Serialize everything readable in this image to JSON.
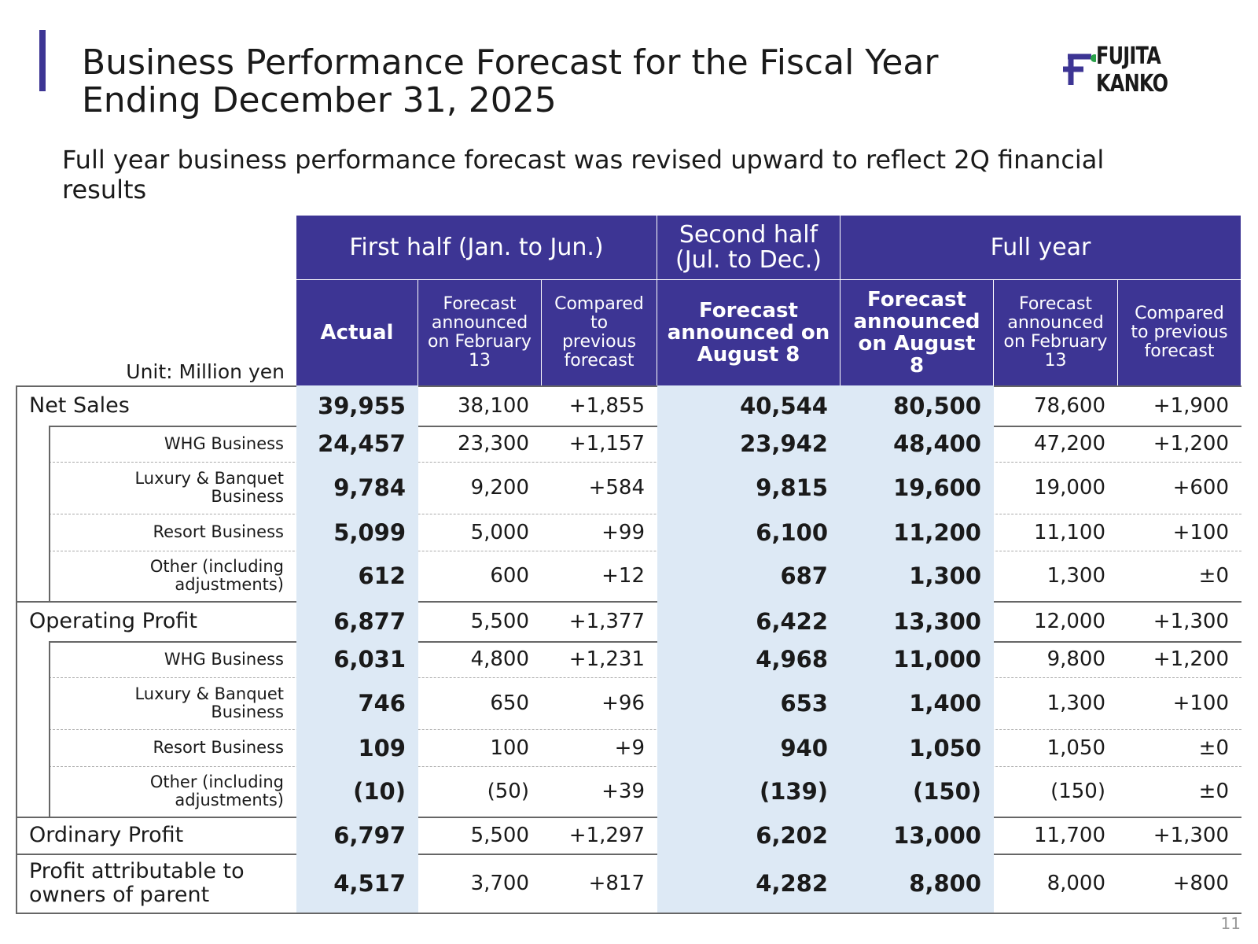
{
  "header": {
    "title": "Business Performance Forecast for the Fiscal Year Ending December 31, 2025",
    "logo": "FUJITA KANKO"
  },
  "subtitle": "Full year business performance forecast was revised upward to reflect 2Q financial results",
  "table": {
    "unit": "Unit: Million yen",
    "groups": [
      "First half (Jan. to Jun.)",
      "Second half (Jul. to Dec.)",
      "Full year"
    ],
    "columns": [
      "Actual",
      "Forecast announced on February 13",
      "Compared to previous forecast",
      "Forecast announced on August 8",
      "Forecast announced on August 8",
      "Forecast announced on February 13",
      "Compared to previous forecast"
    ],
    "sections": [
      {
        "label": "Net Sales",
        "values": [
          "39,955",
          "38,100",
          "+1,855",
          "40,544",
          "80,500",
          "78,600",
          "+1,900"
        ],
        "items": [
          {
            "label": "WHG Business",
            "values": [
              "24,457",
              "23,300",
              "+1,157",
              "23,942",
              "48,400",
              "47,200",
              "+1,200"
            ]
          },
          {
            "label": "Luxury & Banquet Business",
            "values": [
              "9,784",
              "9,200",
              "+584",
              "9,815",
              "19,600",
              "19,000",
              "+600"
            ]
          },
          {
            "label": "Resort Business",
            "values": [
              "5,099",
              "5,000",
              "+99",
              "6,100",
              "11,200",
              "11,100",
              "+100"
            ]
          },
          {
            "label": "Other (including adjustments)",
            "values": [
              "612",
              "600",
              "+12",
              "687",
              "1,300",
              "1,300",
              "±0"
            ]
          }
        ]
      },
      {
        "label": "Operating Profit",
        "values": [
          "6,877",
          "5,500",
          "+1,377",
          "6,422",
          "13,300",
          "12,000",
          "+1,300"
        ],
        "items": [
          {
            "label": "WHG Business",
            "values": [
              "6,031",
              "4,800",
              "+1,231",
              "4,968",
              "11,000",
              "9,800",
              "+1,200"
            ]
          },
          {
            "label": "Luxury & Banquet Business",
            "values": [
              "746",
              "650",
              "+96",
              "653",
              "1,400",
              "1,300",
              "+100"
            ]
          },
          {
            "label": "Resort Business",
            "values": [
              "109",
              "100",
              "+9",
              "940",
              "1,050",
              "1,050",
              "±0"
            ]
          },
          {
            "label": "Other (including adjustments)",
            "values": [
              "(10)",
              "(50)",
              "+39",
              "(139)",
              "(150)",
              "(150)",
              "±0"
            ]
          }
        ]
      },
      {
        "label": "Ordinary Profit",
        "values": [
          "6,797",
          "5,500",
          "+1,297",
          "6,202",
          "13,000",
          "11,700",
          "+1,300"
        ],
        "items": []
      },
      {
        "label": "Profit attributable to owners of parent",
        "values": [
          "4,517",
          "3,700",
          "+817",
          "4,282",
          "8,800",
          "8,000",
          "+800"
        ],
        "items": []
      }
    ]
  },
  "page_number": "11"
}
